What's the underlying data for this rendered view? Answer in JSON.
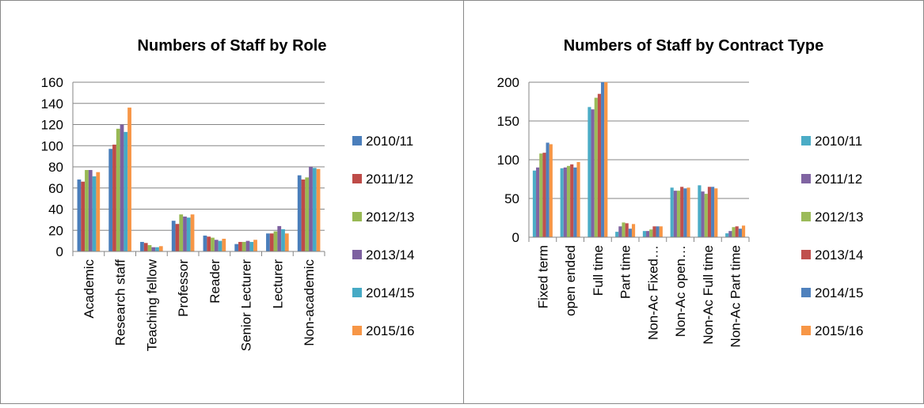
{
  "chart_data": [
    {
      "type": "bar",
      "title": "Numbers of Staff by Role",
      "categories": [
        "Academic",
        "Research staff",
        "Teaching fellow",
        "Professor",
        "Reader",
        "Senior Lecturer",
        "Lecturer",
        "Non-academic"
      ],
      "series": [
        {
          "name": "2010/11",
          "color": "#4a7ebb",
          "values": [
            68,
            97,
            9,
            29,
            15,
            7,
            17,
            72
          ]
        },
        {
          "name": "2011/12",
          "color": "#be4b48",
          "values": [
            66,
            101,
            8,
            26,
            14,
            9,
            17,
            68
          ]
        },
        {
          "name": "2012/13",
          "color": "#98b954",
          "values": [
            77,
            116,
            6,
            35,
            13,
            9,
            19,
            70
          ]
        },
        {
          "name": "2013/14",
          "color": "#7d60a0",
          "values": [
            77,
            120,
            4,
            33,
            11,
            10,
            24,
            80
          ]
        },
        {
          "name": "2014/15",
          "color": "#46aac5",
          "values": [
            71,
            113,
            4,
            32,
            10,
            9,
            21,
            79
          ]
        },
        {
          "name": "2015/16",
          "color": "#f79646",
          "values": [
            75,
            136,
            5,
            35,
            12,
            11,
            17,
            78
          ]
        }
      ],
      "ylim": [
        0,
        160
      ],
      "yticks": [
        0,
        20,
        40,
        60,
        80,
        100,
        120,
        140,
        160
      ],
      "grid": true,
      "legend": "right"
    },
    {
      "type": "bar",
      "title": "Numbers of Staff by Contract Type",
      "categories": [
        "Fixed term",
        "open ended",
        "Full time",
        "Part time",
        "Non-Ac Fixed…",
        "Non-Ac open…",
        "Non-Ac Full time",
        "Non-Ac Part time"
      ],
      "series": [
        {
          "name": "2010/11",
          "color": "#4bacc6",
          "values": [
            86,
            89,
            168,
            7,
            8,
            64,
            67,
            5
          ]
        },
        {
          "name": "2011/12",
          "color": "#8064a2",
          "values": [
            90,
            90,
            165,
            14,
            8,
            60,
            59,
            8
          ]
        },
        {
          "name": "2012/13",
          "color": "#9bbb59",
          "values": [
            108,
            92,
            180,
            19,
            10,
            60,
            56,
            13
          ]
        },
        {
          "name": "2013/14",
          "color": "#c0504d",
          "values": [
            109,
            94,
            185,
            18,
            14,
            65,
            65,
            14
          ]
        },
        {
          "name": "2014/15",
          "color": "#4f81bd",
          "values": [
            122,
            90,
            200,
            11,
            14,
            63,
            65,
            11
          ]
        },
        {
          "name": "2015/16",
          "color": "#f79646",
          "values": [
            120,
            97,
            200,
            17,
            14,
            64,
            63,
            15
          ]
        }
      ],
      "ylim": [
        0,
        200
      ],
      "yticks": [
        0,
        50,
        100,
        150,
        200
      ],
      "grid": true,
      "legend": "right"
    }
  ]
}
